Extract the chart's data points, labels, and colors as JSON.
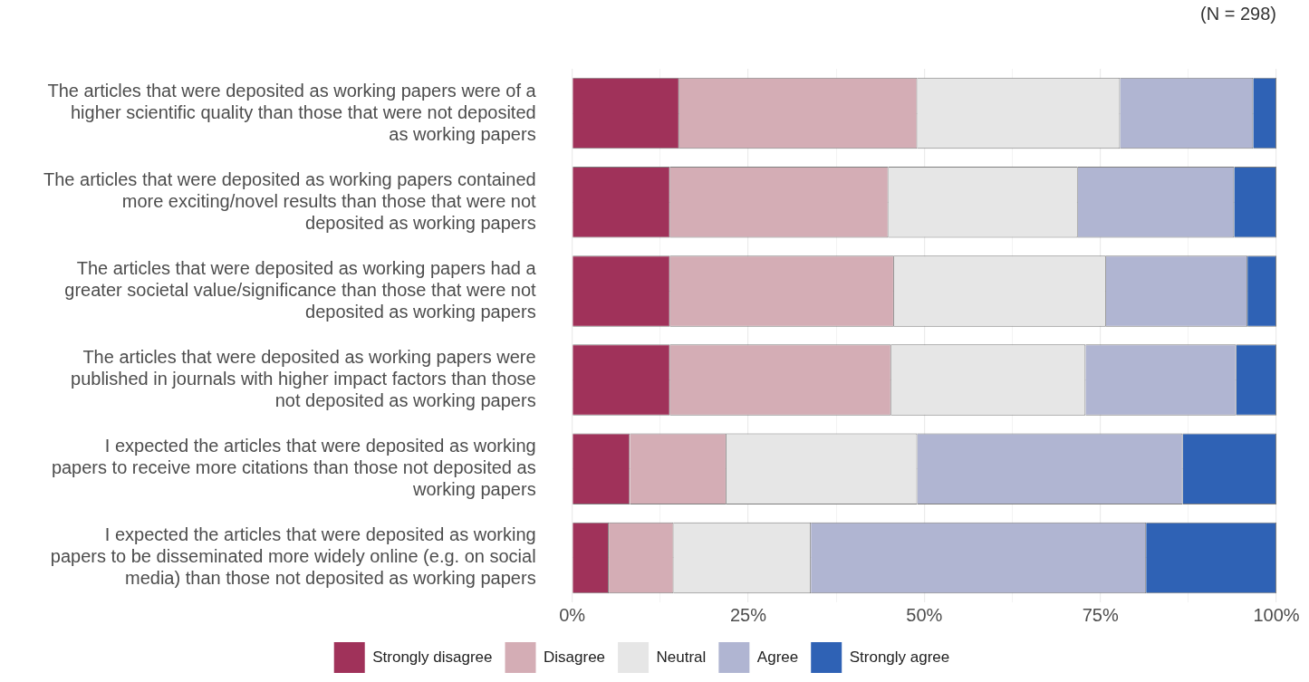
{
  "chart_data": {
    "type": "bar",
    "orientation": "horizontal",
    "stacked": true,
    "categories": [
      "The articles that were deposited as working papers were of a higher scientific quality than those that were not deposited as working papers",
      "The articles that were deposited as working papers contained more exciting/novel results than those that were not deposited as working papers",
      "The articles that were deposited as working papers had a greater societal value/significance than those that were not deposited as working papers",
      "The articles that were deposited as working papers were published in journals with higher impact factors than those not deposited as working papers",
      "I expected the articles that were deposited as working papers to receive more citations than those not deposited as working papers",
      "I expected the articles that were deposited as working papers to be disseminated more widely online (e.g. on social media) than those not deposited as working papers"
    ],
    "series": [
      {
        "name": "Strongly disagree",
        "color": "#a0325a",
        "values": [
          15.2,
          13.9,
          13.9,
          13.9,
          8.2,
          5.2
        ]
      },
      {
        "name": "Disagree",
        "color": "#d4adb5",
        "values": [
          33.8,
          31.0,
          31.8,
          31.4,
          13.7,
          9.2
        ]
      },
      {
        "name": "Neutral",
        "color": "#e6e6e6",
        "values": [
          28.8,
          26.9,
          30.1,
          27.6,
          27.1,
          19.5
        ]
      },
      {
        "name": "Agree",
        "color": "#b0b5d2",
        "values": [
          18.9,
          22.2,
          20.1,
          21.4,
          37.7,
          47.6
        ]
      },
      {
        "name": "Strongly agree",
        "color": "#2f62b5",
        "values": [
          3.3,
          6.0,
          4.1,
          5.7,
          13.3,
          18.5
        ]
      }
    ],
    "xlim": [
      0,
      100
    ],
    "xticks": [
      {
        "value": 0,
        "label": "0%"
      },
      {
        "value": 12.5,
        "label": null
      },
      {
        "value": 25,
        "label": "25%"
      },
      {
        "value": 37.5,
        "label": null
      },
      {
        "value": 50,
        "label": "50%"
      },
      {
        "value": 62.5,
        "label": null
      },
      {
        "value": 75,
        "label": "75%"
      },
      {
        "value": 87.5,
        "label": null
      },
      {
        "value": 100,
        "label": "100%"
      }
    ],
    "grid": true,
    "legend": "bottom",
    "annotations": [
      "(N = 298)"
    ]
  }
}
